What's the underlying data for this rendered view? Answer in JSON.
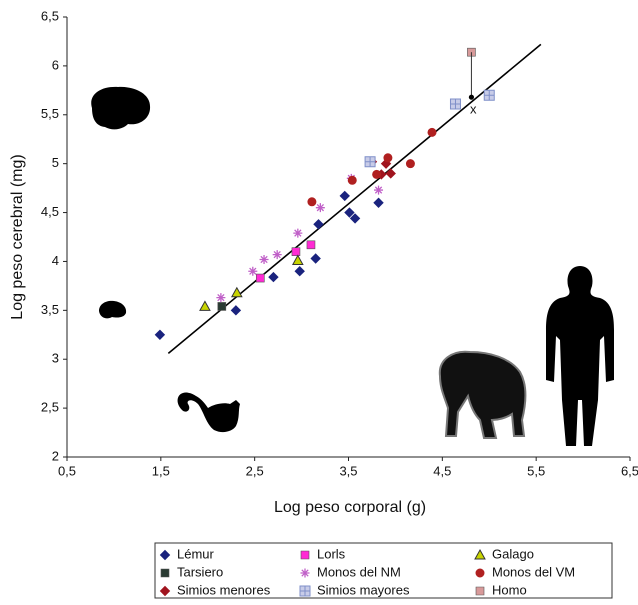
{
  "chart_data": {
    "type": "scatter",
    "x_label": "Log peso corporal (g)",
    "y_label": "Log peso cerebral (mg)",
    "xlim": [
      0.5,
      6.5
    ],
    "ylim": [
      2,
      6.5
    ],
    "xticks": [
      {
        "value": 0.5,
        "label": "0,5"
      },
      {
        "value": 1.5,
        "label": "1,5"
      },
      {
        "value": 2.5,
        "label": "2,5"
      },
      {
        "value": 3.5,
        "label": "3,5"
      },
      {
        "value": 4.5,
        "label": "4,5"
      },
      {
        "value": 5.5,
        "label": "5,5"
      },
      {
        "value": 6.5,
        "label": "6,5"
      }
    ],
    "yticks": [
      2,
      {
        "value": 2.5,
        "label": "2,5"
      },
      3,
      {
        "value": 3.5,
        "label": "3,5"
      },
      4,
      {
        "value": 4.5,
        "label": "4,5"
      },
      5,
      {
        "value": 5.5,
        "label": "5,5"
      },
      6,
      {
        "value": 6.5,
        "label": "6,5"
      }
    ],
    "grid": false,
    "legend_position": "bottom",
    "series": [
      {
        "name": "Lémur",
        "color": "#1a237e",
        "marker": "diamond",
        "x": [
          1.49,
          2.3,
          2.7,
          2.98,
          3.15,
          3.18,
          3.46,
          3.51,
          3.57,
          3.82
        ],
        "values": [
          3.25,
          3.5,
          3.84,
          3.9,
          4.03,
          4.38,
          4.67,
          4.5,
          4.44,
          4.6
        ]
      },
      {
        "name": "Tarsiero",
        "color": "#2a3b33",
        "marker": "square",
        "x": [
          2.15
        ],
        "values": [
          3.54
        ]
      },
      {
        "name": "Simios menores",
        "color": "#a0141e",
        "marker": "diamond",
        "x": [
          3.75,
          3.85,
          3.9,
          3.95
        ],
        "values": [
          5.02,
          4.89,
          5.0,
          4.9
        ]
      },
      {
        "name": "Lorls",
        "color": "#ff2ad4",
        "marker": "square",
        "x": [
          2.56,
          2.94,
          3.1
        ],
        "values": [
          3.83,
          4.1,
          4.17
        ]
      },
      {
        "name": "Monos del NM",
        "color": "#c060c8",
        "marker": "asterisk",
        "x": [
          2.14,
          2.48,
          2.6,
          2.74,
          2.96,
          3.2,
          3.53,
          3.82
        ],
        "values": [
          3.63,
          3.9,
          4.02,
          4.07,
          4.29,
          4.55,
          4.85,
          4.73
        ]
      },
      {
        "name": "Simios mayores",
        "color": "#7f8fc8",
        "marker": "square-cross",
        "x": [
          3.73,
          4.64,
          5.0
        ],
        "values": [
          5.02,
          5.61,
          5.7
        ]
      },
      {
        "name": "Galago",
        "color": "#c8d400",
        "marker": "triangle",
        "x": [
          1.97,
          2.31,
          2.96
        ],
        "values": [
          3.54,
          3.68,
          4.01
        ]
      },
      {
        "name": "Monos del VM",
        "color": "#b02020",
        "marker": "circle",
        "x": [
          3.11,
          3.54,
          3.8,
          3.92,
          4.16,
          4.39
        ],
        "values": [
          4.61,
          4.83,
          4.89,
          5.06,
          5.0,
          5.32
        ]
      },
      {
        "name": "Homo",
        "color": "#d89a9a",
        "marker": "square",
        "x": [
          4.81
        ],
        "values": [
          6.14
        ]
      }
    ],
    "trend_line": {
      "color": "#000000",
      "x": [
        1.58,
        5.55
      ],
      "y": [
        3.06,
        6.22
      ]
    },
    "predicted_point": {
      "x": 4.81,
      "y": 5.68
    },
    "annotations": [
      {
        "text": "x",
        "x": 4.83,
        "y": 5.55
      }
    ]
  }
}
